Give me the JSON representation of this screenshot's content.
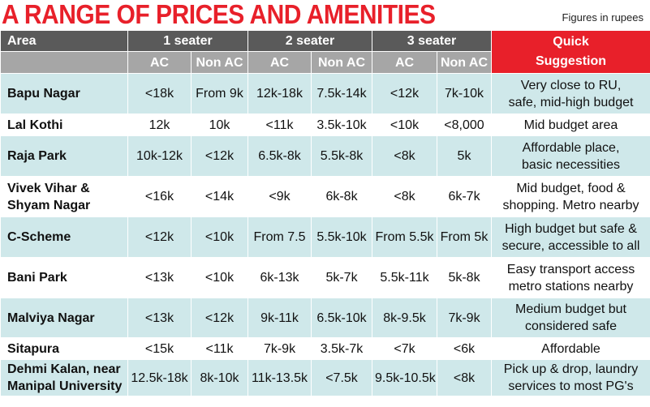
{
  "header": {
    "title": "A RANGE OF PRICES AND AMENITIES",
    "note": "Figures in rupees",
    "title_color": "#e8202a",
    "header_bg": "#5a5a5a",
    "subheader_bg": "#a6a6a6",
    "suggestion_bg": "#e8202a"
  },
  "columns": {
    "area": "Area",
    "one_seater": "1 seater",
    "two_seater": "2 seater",
    "three_seater": "3 seater",
    "ac": "AC",
    "non_ac": "Non AC",
    "suggestion": "Quick\nSuggestion"
  },
  "rows": [
    {
      "area": "Bapu Nagar",
      "s1_ac": "<18k",
      "s1_nonac": "From 9k",
      "s2_ac": "12k-18k",
      "s2_nonac": "7.5k-14k",
      "s3_ac": "<12k",
      "s3_nonac": "7k-10k",
      "suggestion": "Very close to RU,\nsafe, mid-high budget"
    },
    {
      "area": "Lal Kothi",
      "s1_ac": "12k",
      "s1_nonac": "10k",
      "s2_ac": "<11k",
      "s2_nonac": "3.5k-10k",
      "s3_ac": "<10k",
      "s3_nonac": "<8,000",
      "suggestion": "Mid budget area"
    },
    {
      "area": "Raja Park",
      "s1_ac": "10k-12k",
      "s1_nonac": "<12k",
      "s2_ac": "6.5k-8k",
      "s2_nonac": "5.5k-8k",
      "s3_ac": "<8k",
      "s3_nonac": "5k",
      "suggestion": "Affordable place,\nbasic necessities"
    },
    {
      "area": "Vivek Vihar &\nShyam Nagar",
      "s1_ac": "<16k",
      "s1_nonac": "<14k",
      "s2_ac": "<9k",
      "s2_nonac": "6k-8k",
      "s3_ac": "<8k",
      "s3_nonac": "6k-7k",
      "suggestion": "Mid budget, food &\nshopping. Metro nearby"
    },
    {
      "area": "C-Scheme",
      "s1_ac": "<12k",
      "s1_nonac": "<10k",
      "s2_ac": "From 7.5",
      "s2_nonac": "5.5k-10k",
      "s3_ac": "From 5.5k",
      "s3_nonac": "From 5k",
      "suggestion": "High budget but safe &\nsecure, accessible to all"
    },
    {
      "area": "Bani Park",
      "s1_ac": "<13k",
      "s1_nonac": "<10k",
      "s2_ac": "6k-13k",
      "s2_nonac": "5k-7k",
      "s3_ac": "5.5k-11k",
      "s3_nonac": "5k-8k",
      "suggestion": "Easy transport access\nmetro stations nearby"
    },
    {
      "area": "Malviya Nagar",
      "s1_ac": "<13k",
      "s1_nonac": "<12k",
      "s2_ac": "9k-11k",
      "s2_nonac": "6.5k-10k",
      "s3_ac": "8k-9.5k",
      "s3_nonac": "7k-9k",
      "suggestion": "Medium budget but\nconsidered safe"
    },
    {
      "area": "Sitapura",
      "s1_ac": "<15k",
      "s1_nonac": "<11k",
      "s2_ac": "7k-9k",
      "s2_nonac": "3.5k-7k",
      "s3_ac": "<7k",
      "s3_nonac": "<6k",
      "suggestion": "Affordable"
    },
    {
      "area": "Dehmi Kalan, near\nManipal University",
      "s1_ac": "12.5k-18k",
      "s1_nonac": "8k-10k",
      "s2_ac": "11k-13.5k",
      "s2_nonac": "<7.5k",
      "s3_ac": "9.5k-10.5k",
      "s3_nonac": "<8k",
      "suggestion": "Pick up & drop, laundry\nservices to most PG's"
    }
  ]
}
